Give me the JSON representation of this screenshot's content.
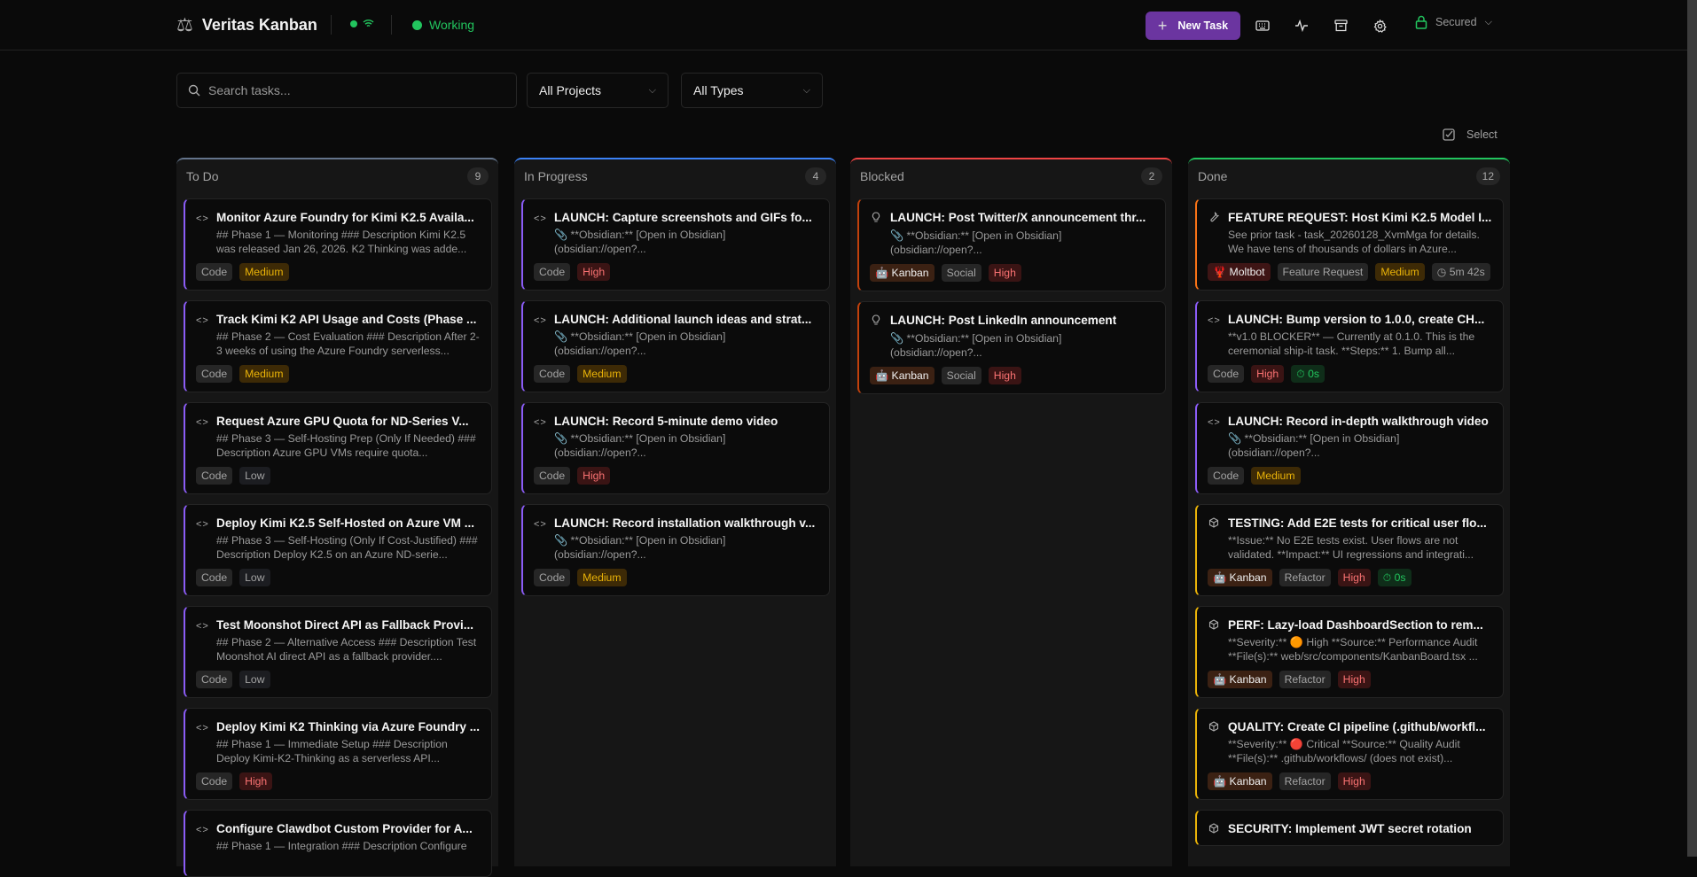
{
  "header": {
    "app_title": "Veritas Kanban",
    "status_label": "Working",
    "new_task_label": "New Task",
    "secured_label": "Secured",
    "accent_color": "#6b35a0",
    "status_color": "#22c55e"
  },
  "filters": {
    "search_placeholder": "Search tasks...",
    "search_value": "",
    "project_select": "All Projects",
    "type_select": "All Types",
    "select_label": "Select"
  },
  "columns": [
    {
      "title": "To Do",
      "count": "9",
      "color": "#64748b",
      "cards": [
        {
          "icon": "code",
          "accent": "#8b5cf6",
          "title": "Monitor Azure Foundry for Kimi K2.5 Availa...",
          "desc": "## Phase 1 — Monitoring ### Description Kimi K2.5 was released Jan 26, 2026. K2 Thinking was adde...",
          "tags": [
            {
              "label": "Code",
              "kind": "type"
            },
            {
              "label": "Medium",
              "kind": "medium"
            }
          ]
        },
        {
          "icon": "code",
          "accent": "#8b5cf6",
          "title": "Track Kimi K2 API Usage and Costs (Phase ...",
          "desc": "## Phase 2 — Cost Evaluation ### Description After 2-3 weeks of using the Azure Foundry serverless...",
          "tags": [
            {
              "label": "Code",
              "kind": "type"
            },
            {
              "label": "Medium",
              "kind": "medium"
            }
          ]
        },
        {
          "icon": "code",
          "accent": "#8b5cf6",
          "title": "Request Azure GPU Quota for ND-Series V...",
          "desc": "## Phase 3 — Self-Hosting Prep (Only If Needed) ### Description Azure GPU VMs require quota...",
          "tags": [
            {
              "label": "Code",
              "kind": "type"
            },
            {
              "label": "Low",
              "kind": "low"
            }
          ]
        },
        {
          "icon": "code",
          "accent": "#8b5cf6",
          "title": "Deploy Kimi K2.5 Self-Hosted on Azure VM ...",
          "desc": "## Phase 3 — Self-Hosting (Only If Cost-Justified) ### Description Deploy K2.5 on an Azure ND-serie...",
          "tags": [
            {
              "label": "Code",
              "kind": "type"
            },
            {
              "label": "Low",
              "kind": "low"
            }
          ]
        },
        {
          "icon": "code",
          "accent": "#8b5cf6",
          "title": "Test Moonshot Direct API as Fallback Provi...",
          "desc": "## Phase 2 — Alternative Access ### Description Test Moonshot AI direct API as a fallback provider....",
          "tags": [
            {
              "label": "Code",
              "kind": "type"
            },
            {
              "label": "Low",
              "kind": "low"
            }
          ]
        },
        {
          "icon": "code",
          "accent": "#8b5cf6",
          "title": "Deploy Kimi K2 Thinking via Azure Foundry ...",
          "desc": "## Phase 1 — Immediate Setup ### Description Deploy Kimi-K2-Thinking as a serverless API...",
          "tags": [
            {
              "label": "Code",
              "kind": "type"
            },
            {
              "label": "High",
              "kind": "high"
            }
          ]
        },
        {
          "icon": "code",
          "accent": "#8b5cf6",
          "title": "Configure Clawdbot Custom Provider for A...",
          "desc": "## Phase 1 — Integration ### Description Configure",
          "tags": []
        }
      ]
    },
    {
      "title": "In Progress",
      "count": "4",
      "color": "#3b82f6",
      "cards": [
        {
          "icon": "code",
          "accent": "#8b5cf6",
          "title": "LAUNCH: Capture screenshots and GIFs fo...",
          "desc": "📎 **Obsidian:** [Open in Obsidian] (obsidian://open?...",
          "tags": [
            {
              "label": "Code",
              "kind": "type"
            },
            {
              "label": "High",
              "kind": "high"
            }
          ]
        },
        {
          "icon": "code",
          "accent": "#8b5cf6",
          "title": "LAUNCH: Additional launch ideas and strat...",
          "desc": "📎 **Obsidian:** [Open in Obsidian] (obsidian://open?...",
          "tags": [
            {
              "label": "Code",
              "kind": "type"
            },
            {
              "label": "Medium",
              "kind": "medium"
            }
          ]
        },
        {
          "icon": "code",
          "accent": "#8b5cf6",
          "title": "LAUNCH: Record 5-minute demo video",
          "desc": "📎 **Obsidian:** [Open in Obsidian] (obsidian://open?...",
          "tags": [
            {
              "label": "Code",
              "kind": "type"
            },
            {
              "label": "High",
              "kind": "high"
            }
          ]
        },
        {
          "icon": "code",
          "accent": "#8b5cf6",
          "title": "LAUNCH: Record installation walkthrough v...",
          "desc": "📎 **Obsidian:** [Open in Obsidian] (obsidian://open?...",
          "tags": [
            {
              "label": "Code",
              "kind": "type"
            },
            {
              "label": "Medium",
              "kind": "medium"
            }
          ]
        }
      ]
    },
    {
      "title": "Blocked",
      "count": "2",
      "color": "#ef4444",
      "cards": [
        {
          "icon": "lightbulb",
          "accent": "#c2410c",
          "title": "LAUNCH: Post Twitter/X announcement thr...",
          "desc": "📎 **Obsidian:** [Open in Obsidian] (obsidian://open?...",
          "tags": [
            {
              "label": "🤖 Kanban",
              "kind": "kanban"
            },
            {
              "label": "Social",
              "kind": "type"
            },
            {
              "label": "High",
              "kind": "high"
            }
          ]
        },
        {
          "icon": "lightbulb",
          "accent": "#c2410c",
          "title": "LAUNCH: Post LinkedIn announcement",
          "desc": "📎 **Obsidian:** [Open in Obsidian] (obsidian://open?...",
          "tags": [
            {
              "label": "🤖 Kanban",
              "kind": "kanban"
            },
            {
              "label": "Social",
              "kind": "type"
            },
            {
              "label": "High",
              "kind": "high"
            }
          ]
        }
      ]
    },
    {
      "title": "Done",
      "count": "12",
      "color": "#22c55e",
      "cards": [
        {
          "icon": "wrench",
          "accent": "#f97316",
          "title": "FEATURE REQUEST: Host Kimi K2.5 Model I...",
          "desc": "See prior task - task_20260128_XvmMga for details. We have tens of thousands of dollars in Azure...",
          "tags": [
            {
              "label": "🦞 Moltbot",
              "kind": "moltbot"
            },
            {
              "label": "Feature Request",
              "kind": "type"
            },
            {
              "label": "Medium",
              "kind": "medium"
            },
            {
              "label": "◷ 5m 42s",
              "kind": "timer"
            }
          ]
        },
        {
          "icon": "code",
          "accent": "#8b5cf6",
          "title": "LAUNCH: Bump version to 1.0.0, create CH...",
          "desc": "**v1.0 BLOCKER** — Currently at 0.1.0. This is the ceremonial ship-it task. **Steps:** 1. Bump all...",
          "tags": [
            {
              "label": "Code",
              "kind": "type"
            },
            {
              "label": "High",
              "kind": "high"
            },
            {
              "label": "⏱ 0s",
              "kind": "timer-green"
            }
          ]
        },
        {
          "icon": "code",
          "accent": "#8b5cf6",
          "title": "LAUNCH: Record in-depth walkthrough video",
          "desc": "📎 **Obsidian:** [Open in Obsidian] (obsidian://open?...",
          "tags": [
            {
              "label": "Code",
              "kind": "type"
            },
            {
              "label": "Medium",
              "kind": "medium"
            }
          ]
        },
        {
          "icon": "package",
          "accent": "#eab308",
          "title": "TESTING: Add E2E tests for critical user flo...",
          "desc": "**Issue:** No E2E tests exist. User flows are not validated. **Impact:** UI regressions and integrati...",
          "tags": [
            {
              "label": "🤖 Kanban",
              "kind": "kanban"
            },
            {
              "label": "Refactor",
              "kind": "type"
            },
            {
              "label": "High",
              "kind": "high"
            },
            {
              "label": "⏱ 0s",
              "kind": "timer-green"
            }
          ]
        },
        {
          "icon": "package",
          "accent": "#eab308",
          "title": "PERF: Lazy-load DashboardSection to rem...",
          "desc": "**Severity:** 🟠 High **Source:** Performance Audit **File(s):** web/src/components/KanbanBoard.tsx ...",
          "tags": [
            {
              "label": "🤖 Kanban",
              "kind": "kanban"
            },
            {
              "label": "Refactor",
              "kind": "type"
            },
            {
              "label": "High",
              "kind": "high"
            }
          ]
        },
        {
          "icon": "package",
          "accent": "#eab308",
          "title": "QUALITY: Create CI pipeline (.github/workfl...",
          "desc": "**Severity:** 🔴 Critical **Source:** Quality Audit **File(s):** .github/workflows/ (does not exist)...",
          "tags": [
            {
              "label": "🤖 Kanban",
              "kind": "kanban"
            },
            {
              "label": "Refactor",
              "kind": "type"
            },
            {
              "label": "High",
              "kind": "high"
            }
          ]
        },
        {
          "icon": "package",
          "accent": "#eab308",
          "title": "SECURITY: Implement JWT secret rotation",
          "desc": "",
          "tags": []
        }
      ]
    }
  ]
}
